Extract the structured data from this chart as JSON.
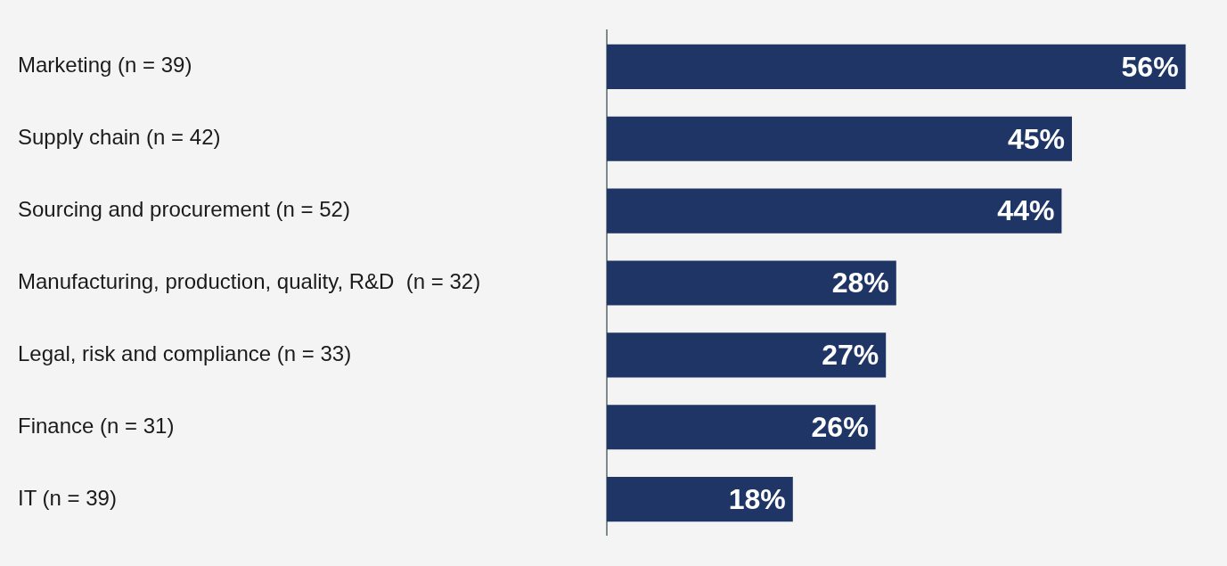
{
  "chart_data": {
    "type": "bar",
    "orientation": "horizontal",
    "categories": [
      "Marketing (n = 39)",
      "Supply chain (n = 42)",
      "Sourcing and procurement (n = 52)",
      "Manufacturing, production, quality, R&D  (n = 32)",
      "Legal, risk and compliance (n = 33)",
      "Finance (n = 31)",
      "IT (n = 39)"
    ],
    "values": [
      56,
      45,
      44,
      28,
      27,
      26,
      18
    ],
    "value_labels": [
      "56%",
      "45%",
      "44%",
      "28%",
      "27%",
      "26%",
      "18%"
    ],
    "color": "#1e3566",
    "tick_labels": "y",
    "grid": false,
    "legend": false
  }
}
